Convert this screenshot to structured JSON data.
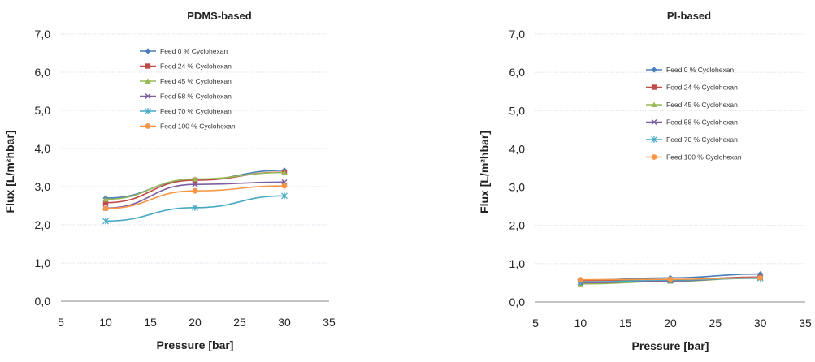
{
  "chart_data": [
    {
      "type": "line",
      "title": "PDMS-based",
      "xlabel": "Pressure [bar]",
      "ylabel": "Flux [L/m²hbar]",
      "xlim": [
        5,
        35
      ],
      "ylim": [
        0,
        7
      ],
      "xticks": [
        "5",
        "10",
        "15",
        "20",
        "25",
        "30",
        "35"
      ],
      "yticks": [
        "0,0",
        "1,0",
        "2,0",
        "3,0",
        "4,0",
        "5,0",
        "6,0",
        "7,0"
      ],
      "grid": "horizontal",
      "legend_position": "top-center",
      "x": [
        10,
        20,
        30
      ],
      "series": [
        {
          "name": "Feed 0 % Cyclohexan",
          "values": [
            2.7,
            3.18,
            3.43
          ],
          "color": "#4a7ebb",
          "marker": "diamond"
        },
        {
          "name": "Feed 24 % Cyclohexan",
          "values": [
            2.58,
            3.17,
            3.38
          ],
          "color": "#be4b48",
          "marker": "square"
        },
        {
          "name": "Feed 45 % Cyclohexan",
          "values": [
            2.67,
            3.2,
            3.37
          ],
          "color": "#98b954",
          "marker": "triangle"
        },
        {
          "name": "Feed 58 % Cyclohexan",
          "values": [
            2.44,
            3.06,
            3.12
          ],
          "color": "#7d60a0",
          "marker": "x"
        },
        {
          "name": "Feed 70 % Cyclohexan",
          "values": [
            2.1,
            2.45,
            2.76
          ],
          "color": "#46aac5",
          "marker": "star"
        },
        {
          "name": "Feed 100 % Cyclohexan",
          "values": [
            2.43,
            2.89,
            3.02
          ],
          "color": "#f79646",
          "marker": "circle"
        }
      ]
    },
    {
      "type": "line",
      "title": "PI-based",
      "xlabel": "Pressure [bar]",
      "ylabel": "Flux [L/m²hbar]",
      "xlim": [
        5,
        35
      ],
      "ylim": [
        0,
        7
      ],
      "xticks": [
        "5",
        "10",
        "15",
        "20",
        "25",
        "30",
        "35"
      ],
      "yticks": [
        "0,0",
        "1,0",
        "2,0",
        "3,0",
        "4,0",
        "5,0",
        "6,0",
        "7,0"
      ],
      "grid": "horizontal",
      "legend_position": "top-center",
      "x": [
        10,
        20,
        30
      ],
      "series": [
        {
          "name": "Feed 0 % Cyclohexan",
          "values": [
            0.57,
            0.63,
            0.73
          ],
          "color": "#4a7ebb",
          "marker": "diamond"
        },
        {
          "name": "Feed 24 % Cyclohexan",
          "values": [
            0.56,
            0.58,
            0.65
          ],
          "color": "#be4b48",
          "marker": "square"
        },
        {
          "name": "Feed 45 % Cyclohexan",
          "values": [
            0.47,
            0.54,
            0.63
          ],
          "color": "#98b954",
          "marker": "triangle"
        },
        {
          "name": "Feed 58 % Cyclohexan",
          "values": [
            0.5,
            0.55,
            0.64
          ],
          "color": "#7d60a0",
          "marker": "x"
        },
        {
          "name": "Feed 70 % Cyclohexan",
          "values": [
            0.52,
            0.57,
            0.62
          ],
          "color": "#46aac5",
          "marker": "star"
        },
        {
          "name": "Feed 100 % Cyclohexan",
          "values": [
            0.58,
            0.59,
            0.63
          ],
          "color": "#f79646",
          "marker": "circle"
        }
      ]
    }
  ]
}
